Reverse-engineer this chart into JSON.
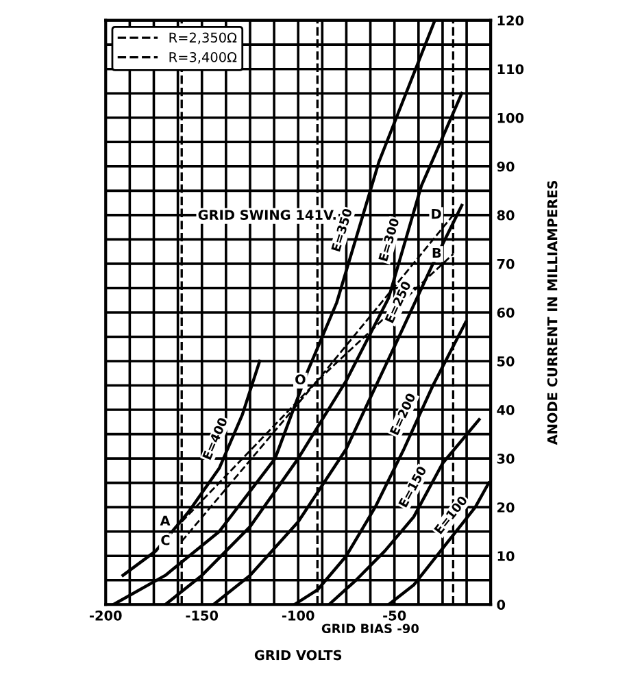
{
  "chart_data": {
    "type": "line",
    "xlabel": "GRID VOLTS",
    "ylabel": "ANODE CURRENT IN MILLIAMPERES",
    "xlim": [
      -200,
      0
    ],
    "ylim": [
      0,
      120
    ],
    "xticks": [
      -200,
      {
        "value": -187.5,
        "label": null
      },
      {
        "value": -175,
        "label": null
      },
      {
        "value": -162.5,
        "label": null
      },
      -150,
      {
        "value": -137.5,
        "label": null
      },
      {
        "value": -125,
        "label": null
      },
      {
        "value": -112.5,
        "label": null
      },
      -100,
      {
        "value": -87.5,
        "label": null
      },
      {
        "value": -75,
        "label": null
      },
      {
        "value": -62.5,
        "label": null
      },
      -50,
      {
        "value": -37.5,
        "label": null
      },
      {
        "value": -25,
        "label": null
      },
      {
        "value": -12.5,
        "label": null
      },
      {
        "value": 0,
        "label": null
      }
    ],
    "yticks": [
      0,
      {
        "value": 5,
        "label": null
      },
      10,
      {
        "value": 15,
        "label": null
      },
      20,
      {
        "value": 25,
        "label": null
      },
      30,
      {
        "value": 35,
        "label": null
      },
      40,
      {
        "value": 45,
        "label": null
      },
      50,
      {
        "value": 55,
        "label": null
      },
      60,
      {
        "value": 65,
        "label": null
      },
      70,
      {
        "value": 75,
        "label": null
      },
      80,
      {
        "value": 85,
        "label": null
      },
      90,
      {
        "value": 95,
        "label": null
      },
      100,
      {
        "value": 105,
        "label": null
      },
      110,
      {
        "value": 115,
        "label": null
      },
      120
    ],
    "grid": true,
    "legend": "top left",
    "series": [
      {
        "name": "E=400",
        "color": "#000000",
        "x": [
          -191,
          -174,
          -157,
          -141,
          -129,
          -120
        ],
        "values": [
          6,
          11,
          19,
          28,
          39,
          50
        ]
      },
      {
        "name": "E=350",
        "color": "#000000",
        "x": [
          -196,
          -169,
          -141,
          -112,
          -95,
          -80,
          -58,
          -29
        ],
        "values": [
          0,
          6,
          15,
          30,
          48,
          62,
          91,
          120
        ]
      },
      {
        "name": "E=300",
        "color": "#000000",
        "x": [
          -169,
          -150,
          -125,
          -100,
          -75,
          -53,
          -36,
          -15
        ],
        "values": [
          0,
          6,
          16,
          30,
          46,
          63,
          86,
          105
        ]
      },
      {
        "name": "E=250",
        "color": "#000000",
        "x": [
          -144,
          -125,
          -100,
          -75,
          -50,
          -30,
          -15
        ],
        "values": [
          0,
          6,
          17,
          32,
          53,
          70,
          82
        ]
      },
      {
        "name": "E=200",
        "color": "#000000",
        "x": [
          -102,
          -90,
          -75,
          -60,
          -45,
          -30,
          -13
        ],
        "values": [
          0,
          3,
          10,
          20,
          32,
          45,
          58
        ]
      },
      {
        "name": "E=150",
        "color": "#000000",
        "x": [
          -84,
          -70,
          -55,
          -40,
          -25,
          -6
        ],
        "values": [
          0,
          5,
          11,
          18,
          29,
          38
        ]
      },
      {
        "name": "E=100",
        "color": "#000000",
        "x": [
          -53,
          -40,
          -28,
          -18,
          -8,
          -1
        ],
        "values": [
          0,
          4,
          10,
          15,
          20,
          25
        ]
      },
      {
        "name": "R=2,350Ω",
        "color": "#000000",
        "line_style": "dashed",
        "x": [
          -160.5,
          -90,
          -19.5
        ],
        "values": [
          17,
          46,
          80
        ]
      },
      {
        "name": "R=3,400Ω",
        "color": "#000000",
        "line_style": "dashed",
        "x": [
          -160.5,
          -90,
          -19.5
        ],
        "values": [
          13,
          46,
          72
        ]
      }
    ],
    "ref_lines": [
      {
        "axis": "x",
        "value": -160.5,
        "line_style": "dashed",
        "color": "#000000"
      },
      {
        "axis": "x",
        "value": -90,
        "label": "GRID BIAS -90",
        "line_style": "dashed",
        "color": "#000000"
      },
      {
        "axis": "x",
        "value": -19.5,
        "line_style": "dashed",
        "color": "#000000"
      }
    ],
    "annotations": [
      "GRID SWING 141V.",
      {
        "text": "A",
        "x": -160.5,
        "y": 17
      },
      {
        "text": "C",
        "x": -160.5,
        "y": 13
      },
      {
        "text": "O",
        "x": -90,
        "y": 46
      },
      {
        "text": "D",
        "x": -19.5,
        "y": 80
      },
      {
        "text": "B",
        "x": -19.5,
        "y": 72
      }
    ]
  }
}
